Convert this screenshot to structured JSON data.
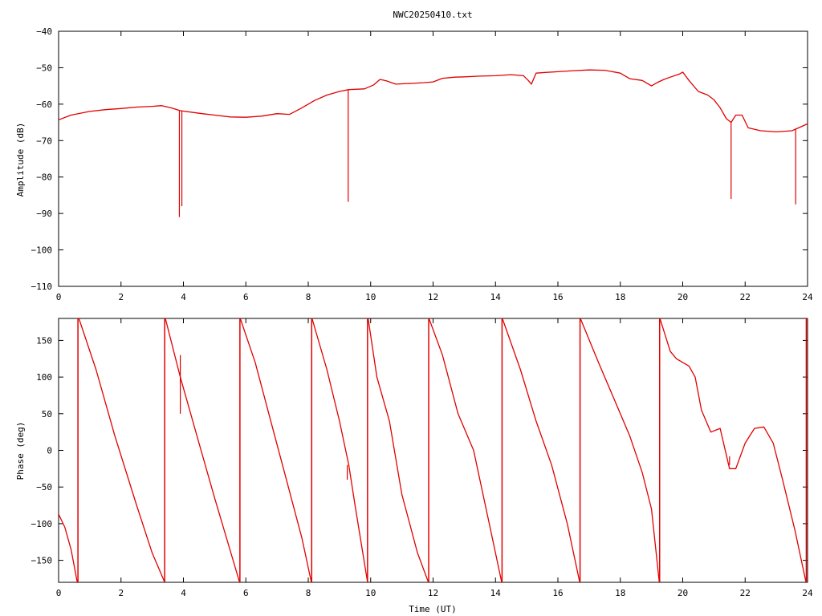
{
  "title": "NWC20250410.txt",
  "colors": {
    "series": "#e00000",
    "axes": "#000000",
    "background": "#ffffff"
  },
  "chart_data": [
    {
      "type": "line",
      "title": "NWC20250410.txt",
      "xlabel": "",
      "ylabel": "Amplitude (dB)",
      "xlim": [
        0,
        24
      ],
      "ylim": [
        -110,
        -40
      ],
      "xticks": [
        "0",
        "2",
        "4",
        "6",
        "8",
        "10",
        "12",
        "14",
        "16",
        "18",
        "20",
        "22",
        "24"
      ],
      "yticks": [
        "-40",
        "-50",
        "-60",
        "-70",
        "-80",
        "-90",
        "-100",
        "-110"
      ],
      "grid": false,
      "legend": "none",
      "series": [
        {
          "points": [
            [
              0,
              -64.3
            ],
            [
              0.4,
              -63
            ],
            [
              1,
              -62
            ],
            [
              1.5,
              -61.5
            ],
            [
              2,
              -61.2
            ],
            [
              2.5,
              -60.8
            ],
            [
              3,
              -60.6
            ],
            [
              3.3,
              -60.4
            ],
            [
              3.6,
              -61
            ],
            [
              3.9,
              -61.8
            ],
            [
              4.5,
              -62.5
            ],
            [
              5,
              -63
            ],
            [
              5.5,
              -63.5
            ],
            [
              6,
              -63.6
            ],
            [
              6.5,
              -63.3
            ],
            [
              7,
              -62.6
            ],
            [
              7.4,
              -62.8
            ],
            [
              7.8,
              -61
            ],
            [
              8.2,
              -59
            ],
            [
              8.6,
              -57.5
            ],
            [
              9,
              -56.5
            ],
            [
              9.3,
              -56
            ],
            [
              9.8,
              -55.8
            ],
            [
              10.1,
              -54.7
            ],
            [
              10.3,
              -53.2
            ],
            [
              10.5,
              -53.6
            ],
            [
              10.8,
              -54.5
            ],
            [
              11.3,
              -54.3
            ],
            [
              11.7,
              -54.1
            ],
            [
              12,
              -53.9
            ],
            [
              12.3,
              -52.9
            ],
            [
              12.7,
              -52.6
            ],
            [
              13,
              -52.5
            ],
            [
              13.5,
              -52.3
            ],
            [
              14,
              -52.2
            ],
            [
              14.5,
              -51.9
            ],
            [
              14.9,
              -52.2
            ],
            [
              15.05,
              -53.5
            ],
            [
              15.15,
              -54.5
            ],
            [
              15.3,
              -51.5
            ],
            [
              15.6,
              -51.3
            ],
            [
              16,
              -51.1
            ],
            [
              16.5,
              -50.8
            ],
            [
              17,
              -50.6
            ],
            [
              17.5,
              -50.7
            ],
            [
              18,
              -51.5
            ],
            [
              18.3,
              -53
            ],
            [
              18.7,
              -53.5
            ],
            [
              19,
              -55
            ],
            [
              19.2,
              -54
            ],
            [
              19.4,
              -53.2
            ],
            [
              19.6,
              -52.6
            ],
            [
              19.9,
              -51.7
            ],
            [
              20,
              -51.2
            ],
            [
              20.2,
              -53.5
            ],
            [
              20.5,
              -56.5
            ],
            [
              20.8,
              -57.5
            ],
            [
              21,
              -58.8
            ],
            [
              21.2,
              -61
            ],
            [
              21.4,
              -64
            ],
            [
              21.55,
              -65
            ],
            [
              21.7,
              -63
            ],
            [
              21.9,
              -63
            ],
            [
              22.1,
              -66.5
            ],
            [
              22.5,
              -67.3
            ],
            [
              23,
              -67.6
            ],
            [
              23.5,
              -67.3
            ],
            [
              24,
              -65.4
            ]
          ]
        }
      ],
      "spikes": [
        {
          "x": 3.87,
          "y_min": -91
        },
        {
          "x": 3.95,
          "y_min": -88
        },
        {
          "x": 9.28,
          "y_min": -86.8
        },
        {
          "x": 21.55,
          "y_min": -86
        },
        {
          "x": 23.62,
          "y_min": -87.5
        }
      ]
    },
    {
      "type": "line",
      "title": "",
      "xlabel": "Time (UT)",
      "ylabel": "Phase (deg)",
      "xlim": [
        0,
        24
      ],
      "ylim": [
        -180,
        180
      ],
      "xticks": [
        "0",
        "2",
        "4",
        "6",
        "8",
        "10",
        "12",
        "14",
        "16",
        "18",
        "20",
        "22",
        "24"
      ],
      "yticks": [
        "150",
        "100",
        "50",
        "0",
        "-50",
        "-100",
        "-150"
      ],
      "grid": false,
      "legend": "none",
      "series": [
        {
          "segments": [
            [
              [
                0,
                -87
              ],
              [
                0.2,
                -105
              ],
              [
                0.4,
                -135
              ],
              [
                0.6,
                -180
              ]
            ],
            [
              [
                0.65,
                180
              ],
              [
                1.2,
                110
              ],
              [
                1.8,
                20
              ],
              [
                2.5,
                -75
              ],
              [
                3.0,
                -140
              ],
              [
                3.4,
                -180
              ]
            ],
            [
              [
                3.42,
                180
              ],
              [
                3.9,
                100
              ],
              [
                4.5,
                10
              ],
              [
                5.0,
                -65
              ],
              [
                5.8,
                -180
              ]
            ],
            [
              [
                5.82,
                180
              ],
              [
                6.3,
                120
              ],
              [
                6.8,
                40
              ],
              [
                7.3,
                -40
              ],
              [
                7.8,
                -120
              ],
              [
                8.1,
                -180
              ]
            ],
            [
              [
                8.12,
                180
              ],
              [
                8.6,
                110
              ],
              [
                9.0,
                40
              ],
              [
                9.3,
                -20
              ],
              [
                9.5,
                -75
              ],
              [
                9.9,
                -180
              ]
            ],
            [
              [
                9.92,
                180
              ],
              [
                10.2,
                100
              ],
              [
                10.6,
                40
              ],
              [
                11.0,
                -60
              ],
              [
                11.5,
                -140
              ],
              [
                11.85,
                -180
              ]
            ],
            [
              [
                11.87,
                180
              ],
              [
                12.3,
                130
              ],
              [
                12.8,
                50
              ],
              [
                13.3,
                0
              ],
              [
                13.8,
                -100
              ],
              [
                14.2,
                -180
              ]
            ],
            [
              [
                14.22,
                180
              ],
              [
                14.8,
                110
              ],
              [
                15.3,
                40
              ],
              [
                15.8,
                -20
              ],
              [
                16.3,
                -100
              ],
              [
                16.7,
                -180
              ]
            ],
            [
              [
                16.72,
                180
              ],
              [
                17.3,
                120
              ],
              [
                17.8,
                70
              ],
              [
                18.3,
                20
              ],
              [
                18.7,
                -30
              ],
              [
                19.0,
                -80
              ],
              [
                19.25,
                -180
              ]
            ],
            [
              [
                19.27,
                180
              ],
              [
                19.6,
                135
              ],
              [
                19.8,
                125
              ],
              [
                20.2,
                115
              ],
              [
                20.4,
                100
              ],
              [
                20.6,
                55
              ],
              [
                20.9,
                25
              ],
              [
                21.2,
                30
              ],
              [
                21.5,
                -25
              ],
              [
                21.7,
                -25
              ],
              [
                22.0,
                10
              ],
              [
                22.3,
                30
              ],
              [
                22.6,
                32
              ],
              [
                22.9,
                10
              ],
              [
                23.2,
                -40
              ],
              [
                23.6,
                -110
              ],
              [
                23.85,
                -160
              ],
              [
                23.95,
                -180
              ]
            ],
            [
              [
                23.97,
                180
              ],
              [
                24,
                180
              ]
            ]
          ]
        }
      ],
      "spikes": [
        {
          "x": 3.9,
          "y_min": 50,
          "y_max": 130
        },
        {
          "x": 9.25,
          "y_min": -40,
          "y_max": -20
        },
        {
          "x": 21.5,
          "y_min": -20,
          "y_max": -8
        }
      ],
      "wraps": [
        0.62,
        3.4,
        5.81,
        8.11,
        9.9,
        11.86,
        14.21,
        16.71,
        19.26,
        23.96
      ]
    }
  ]
}
